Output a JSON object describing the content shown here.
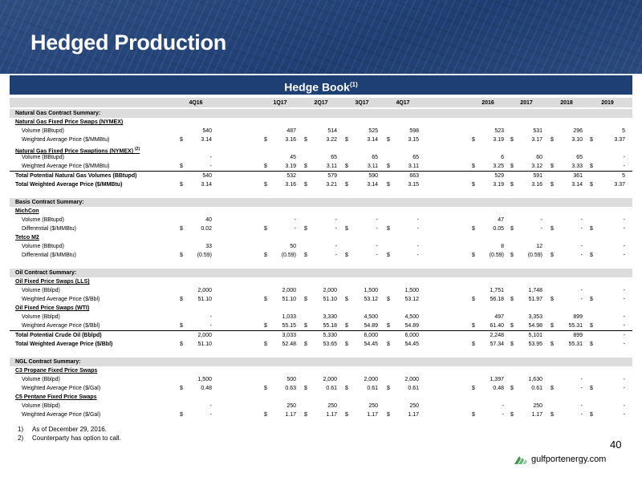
{
  "header": {
    "title": "Hedged Production"
  },
  "hedge_book": {
    "title": "Hedge Book",
    "sup": "(1)"
  },
  "columns": [
    "4Q16",
    "1Q17",
    "2Q17",
    "3Q17",
    "4Q17",
    "2016",
    "2017",
    "2018",
    "2019"
  ],
  "rows": [
    {
      "type": "section",
      "label": "Natural Gas Contract Summary:"
    },
    {
      "type": "group",
      "label": "Natural Gas Fixed Price Swaps (NYMEX)"
    },
    {
      "type": "item",
      "label": "Volume (BBtupd)",
      "values": [
        "540",
        "487",
        "514",
        "525",
        "598",
        "523",
        "531",
        "296",
        "5"
      ]
    },
    {
      "type": "item",
      "label": "Weighted Average Price ($/MMBtu)",
      "dollar": true,
      "values": [
        "3.14",
        "3.16",
        "3.22",
        "3.14",
        "3.15",
        "3.19",
        "3.17",
        "3.10",
        "3.37"
      ]
    },
    {
      "type": "group",
      "label": "Natural Gas Fixed Price Swaptions (NYMEX)",
      "sup": "(2)"
    },
    {
      "type": "item",
      "label": "Volume (BBtupd)",
      "values": [
        "-",
        "45",
        "65",
        "65",
        "65",
        "6",
        "60",
        "65",
        "-"
      ]
    },
    {
      "type": "item",
      "label": "Weighted Average Price ($/MMBtu)",
      "dollar": true,
      "values": [
        "-",
        "3.19",
        "3.11",
        "3.11",
        "3.11",
        "3.25",
        "3.12",
        "3.33",
        "-"
      ]
    },
    {
      "type": "total",
      "label": "Total Potential Natural Gas Volumes (BBtupd)",
      "values": [
        "540",
        "532",
        "579",
        "590",
        "663",
        "529",
        "591",
        "361",
        "5"
      ]
    },
    {
      "type": "total",
      "label": "Total Weighted Average Price ($/MMBtu)",
      "dollar": true,
      "values": [
        "3.14",
        "3.16",
        "3.21",
        "3.14",
        "3.15",
        "3.19",
        "3.16",
        "3.14",
        "3.37"
      ]
    },
    {
      "type": "gap"
    },
    {
      "type": "section",
      "label": "Basis Contract Summary:"
    },
    {
      "type": "group",
      "label": "MichCon"
    },
    {
      "type": "item",
      "label": "Volume (BBtupd)",
      "values": [
        "40",
        "-",
        "-",
        "-",
        "-",
        "47",
        "-",
        "-",
        "-"
      ]
    },
    {
      "type": "item",
      "label": "Differential ($/MMBtu)",
      "dollar": true,
      "values": [
        "0.02",
        "-",
        "-",
        "-",
        "-",
        "0.05",
        "-",
        "-",
        "-"
      ]
    },
    {
      "type": "group",
      "label": "Tetco M2"
    },
    {
      "type": "item",
      "label": "Volume (BBtupd)",
      "values": [
        "33",
        "50",
        "-",
        "-",
        "-",
        "8",
        "12",
        "-",
        "-"
      ]
    },
    {
      "type": "item",
      "label": "Differential ($/MMBtu)",
      "dollar": true,
      "values": [
        "(0.59)",
        "(0.59)",
        "-",
        "-",
        "-",
        "(0.59)",
        "(0.59)",
        "-",
        "-"
      ]
    },
    {
      "type": "gap"
    },
    {
      "type": "section",
      "label": "Oil Contract Summary:"
    },
    {
      "type": "group",
      "label": "Oil Fixed Price Swaps (LLS)"
    },
    {
      "type": "item",
      "label": "Volume (Bblpd)",
      "values": [
        "2,000",
        "2,000",
        "2,000",
        "1,500",
        "1,500",
        "1,751",
        "1,748",
        "-",
        "-"
      ]
    },
    {
      "type": "item",
      "label": "Weighted Average Price ($/Bbl)",
      "dollar": true,
      "values": [
        "51.10",
        "51.10",
        "51.10",
        "53.12",
        "53.12",
        "56.18",
        "51.97",
        "-",
        "-"
      ]
    },
    {
      "type": "group",
      "label": "Oil Fixed Price Swaps (WTI)"
    },
    {
      "type": "item",
      "label": "Volume (Bblpd)",
      "values": [
        "-",
        "1,033",
        "3,330",
        "4,500",
        "4,500",
        "497",
        "3,353",
        "899",
        "-"
      ]
    },
    {
      "type": "item",
      "label": "Weighted Average Price ($/Bbl)",
      "dollar": true,
      "values": [
        "-",
        "55.15",
        "55.18",
        "54.89",
        "54.89",
        "61.40",
        "54.98",
        "55.31",
        "-"
      ]
    },
    {
      "type": "total",
      "label": "Total Potential Crude Oil (Bblpd)",
      "values": [
        "2,000",
        "3,033",
        "5,330",
        "6,000",
        "6,000",
        "2,248",
        "5,101",
        "899",
        "-"
      ]
    },
    {
      "type": "total",
      "label": "Total Weighted Average Price ($/Bbl)",
      "dollar": true,
      "values": [
        "51.10",
        "52.48",
        "53.65",
        "54.45",
        "54.45",
        "57.34",
        "53.95",
        "55.31",
        "-"
      ]
    },
    {
      "type": "gap"
    },
    {
      "type": "section",
      "label": "NGL Contract Summary:"
    },
    {
      "type": "group",
      "label": "C3 Propane Fixed Price Swaps"
    },
    {
      "type": "item",
      "label": "Volume (Bblpd)",
      "values": [
        "1,500",
        "500",
        "2,000",
        "2,000",
        "2,000",
        "1,397",
        "1,630",
        "-",
        "-"
      ]
    },
    {
      "type": "item",
      "label": "Weighted Average Price ($/Gal)",
      "dollar": true,
      "values": [
        "0.48",
        "0.63",
        "0.61",
        "0.61",
        "0.61",
        "0.48",
        "0.61",
        "-",
        "-"
      ]
    },
    {
      "type": "group",
      "label": "C5 Pentane Fixed Price Swaps"
    },
    {
      "type": "item",
      "label": "Volume (Bblpd)",
      "values": [
        "-",
        "250",
        "250",
        "250",
        "250",
        "-",
        "250",
        "-",
        "-"
      ]
    },
    {
      "type": "item",
      "label": "Weighted Average Price ($/Gal)",
      "dollar": true,
      "values": [
        "-",
        "1.17",
        "1.17",
        "1.17",
        "1.17",
        "-",
        "1.17",
        "-",
        "-"
      ]
    }
  ],
  "footnotes": [
    {
      "num": "1)",
      "text": "As of December 29, 2016."
    },
    {
      "num": "2)",
      "text": "Counterparty has option to call."
    }
  ],
  "page_number": "40",
  "logo_text": "gulfportenergy.com",
  "colors": {
    "banner": "#25457a",
    "bar": "#1e3f73",
    "row_shade": "#dcdcdc",
    "logo_green": "#3a9a4a"
  }
}
